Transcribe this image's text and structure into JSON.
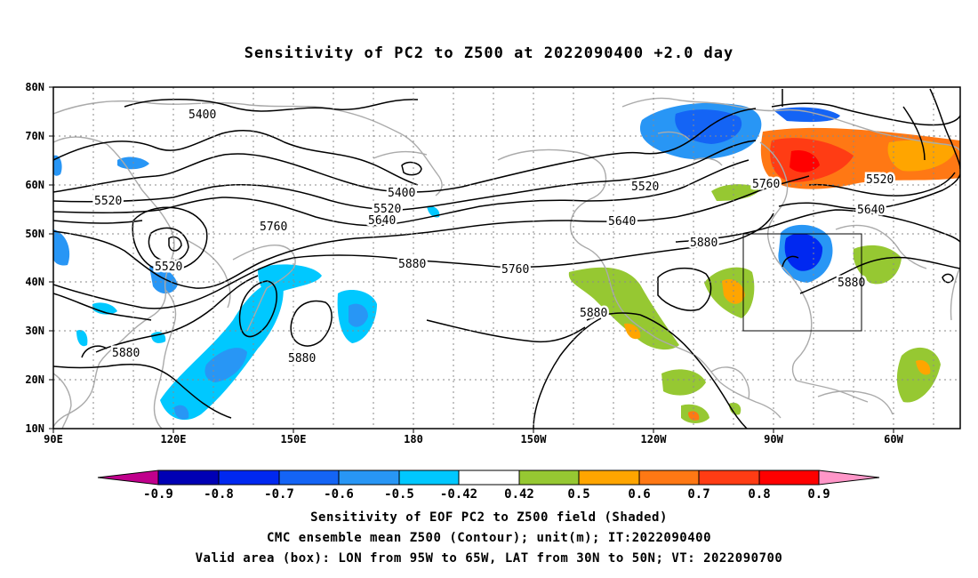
{
  "title": "Sensitivity of PC2 to Z500 at 2022090400 +2.0 day",
  "latitude_labels": [
    "80N",
    "70N",
    "60N",
    "50N",
    "40N",
    "30N",
    "20N",
    "10N"
  ],
  "longitude_labels": [
    "90E",
    "120E",
    "150E",
    "180",
    "150W",
    "120W",
    "90W",
    "60W"
  ],
  "contour_labels": [
    {
      "text": "5400"
    },
    {
      "text": "5400"
    },
    {
      "text": "5520"
    },
    {
      "text": "5520"
    },
    {
      "text": "5520"
    },
    {
      "text": "5520"
    },
    {
      "text": "5640"
    },
    {
      "text": "5640"
    },
    {
      "text": "5640"
    },
    {
      "text": "5760"
    },
    {
      "text": "5760"
    },
    {
      "text": "5760"
    },
    {
      "text": "5520"
    },
    {
      "text": "5880"
    },
    {
      "text": "5880"
    },
    {
      "text": "5880"
    },
    {
      "text": "5880"
    },
    {
      "text": "5880"
    },
    {
      "text": "5880"
    }
  ],
  "colorbar": {
    "labels": [
      "-0.9",
      "-0.8",
      "-0.7",
      "-0.6",
      "-0.5",
      "-0.42",
      "0.42",
      "0.5",
      "0.6",
      "0.7",
      "0.8",
      "0.9"
    ],
    "colors": {
      "below": "#c0008c",
      "bins": [
        "#0000b4",
        "#0028f0",
        "#1464f5",
        "#2896f5",
        "#00c8ff",
        "#ffffff",
        "#96c832",
        "#ffa500",
        "#ff7814",
        "#ff3c14",
        "#ff0000"
      ],
      "above": "#ff96c8"
    }
  },
  "valid_area_box": {
    "lon_west": "95W",
    "lon_east": "65W",
    "lat_south": "30N",
    "lat_north": "50N"
  },
  "captions": {
    "line1": "Sensitivity of EOF PC2 to Z500 field (Shaded)",
    "line2": "CMC ensemble mean Z500 (Contour); unit(m); IT:2022090400",
    "line3": "Valid area (box): LON from 95W to 65W, LAT from 30N to 50N; VT: 2022090700"
  }
}
